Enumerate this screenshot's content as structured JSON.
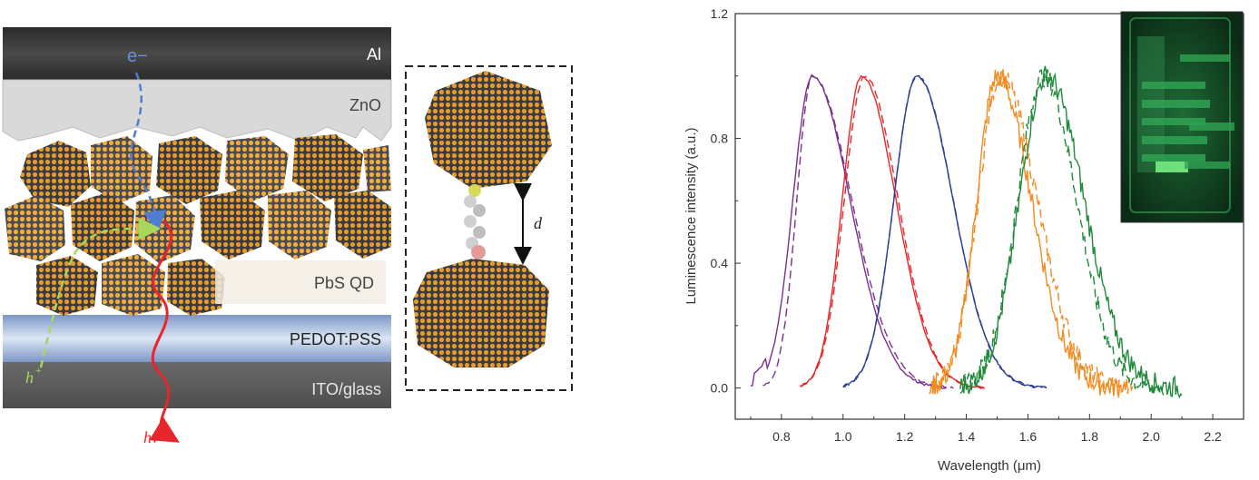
{
  "device": {
    "layers": {
      "al": "Al",
      "zno": "ZnO",
      "qd": "PbS QD",
      "pedot": "PEDOT:PSS",
      "ito": "ITO/glass"
    },
    "carriers": {
      "electron": "e−",
      "hole_base": "h",
      "hole_sup": "+",
      "photon": "hν"
    },
    "colors": {
      "al": "#3e3e3e",
      "zno": "#d9d9d9",
      "pedot": "#9fb6d8",
      "ito": "#5a5a5a",
      "qd_orange": "#e39b2a",
      "electron_path": "#4f7ed1",
      "hole_path": "#a8d65a",
      "photon": "#e8262b"
    }
  },
  "inset_ligand": {
    "distance_label": "d"
  },
  "chart_data": {
    "type": "line",
    "xlabel": "Wavelength (μm)",
    "ylabel": "Luminescence intensity (a.u.)",
    "xlim": [
      0.65,
      2.3
    ],
    "ylim": [
      -0.1,
      1.2
    ],
    "xticks": [
      0.8,
      1.0,
      1.2,
      1.4,
      1.6,
      1.8,
      2.0,
      2.2
    ],
    "xtick_labels": [
      "0.8",
      "1.0",
      "1.2",
      "1.4",
      "1.6",
      "1.8",
      "2.0",
      "2.2"
    ],
    "yticks": [
      0.0,
      0.4,
      0.8,
      1.2
    ],
    "ytick_labels": [
      "0.0",
      "0.4",
      "0.8",
      "1.2"
    ],
    "grid": false,
    "legend": null,
    "inset": "photo of green-emitting device",
    "series": [
      {
        "color": "#7b2f8f",
        "style": "solid",
        "peak": 0.9,
        "x_range": [
          0.7,
          1.34
        ],
        "noisy": false,
        "small_bump": 0.73
      },
      {
        "color": "#7b2f8f",
        "style": "dashed",
        "peak": 0.9,
        "x_range": [
          0.74,
          1.36
        ],
        "noisy": false
      },
      {
        "color": "#e8262b",
        "style": "solid",
        "peak": 1.06,
        "x_range": [
          0.86,
          1.46
        ],
        "noisy": false
      },
      {
        "color": "#e8262b",
        "style": "dashed",
        "peak": 1.07,
        "x_range": [
          0.86,
          1.46
        ],
        "noisy": false
      },
      {
        "color": "#2d3e97",
        "style": "solid",
        "peak": 1.24,
        "x_range": [
          1.0,
          1.66
        ],
        "noisy": false
      },
      {
        "color": "#2d3e97",
        "style": "dashed",
        "peak": 1.24,
        "x_range": [
          1.0,
          1.66
        ],
        "noisy": false
      },
      {
        "color": "#f28a1e",
        "style": "solid",
        "peak": 1.5,
        "x_range": [
          1.29,
          1.9
        ],
        "noisy": true
      },
      {
        "color": "#f28a1e",
        "style": "dashed",
        "peak": 1.51,
        "x_range": [
          1.28,
          1.94
        ],
        "noisy": true
      },
      {
        "color": "#1f8a3a",
        "style": "solid",
        "peak": 1.66,
        "x_range": [
          1.38,
          2.1
        ],
        "noisy": true
      },
      {
        "color": "#1f8a3a",
        "style": "dashed",
        "peak": 1.65,
        "x_range": [
          1.38,
          2.04
        ],
        "noisy": true
      }
    ]
  }
}
